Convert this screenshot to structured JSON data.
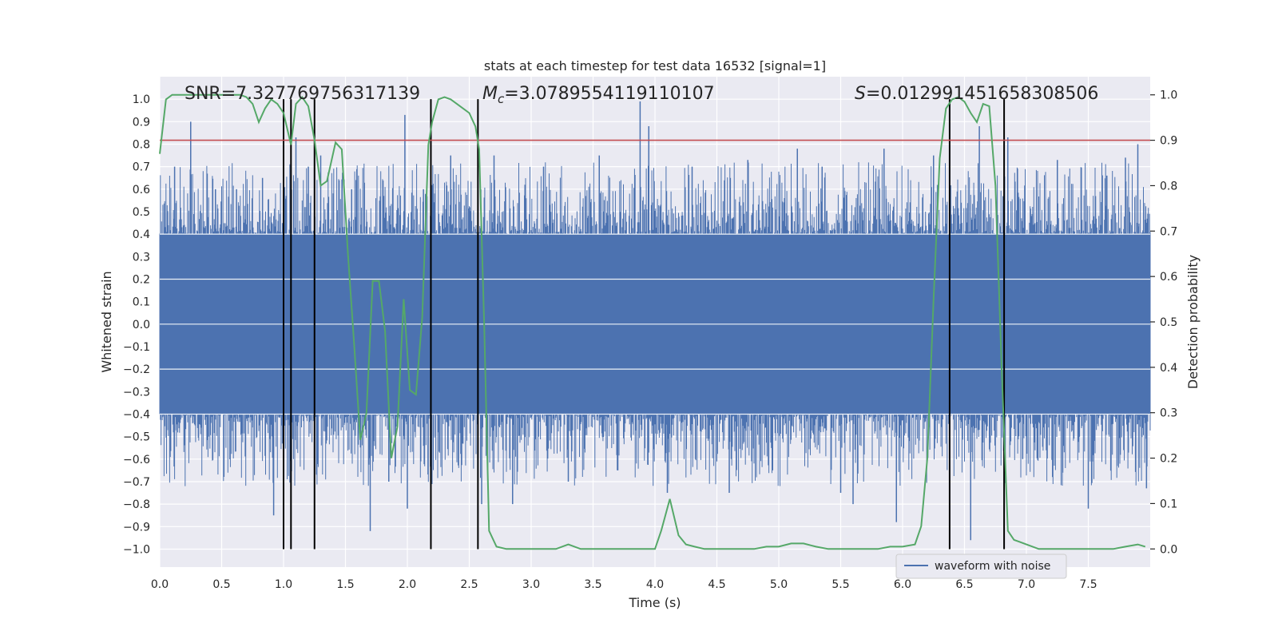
{
  "chart_data": {
    "type": "line",
    "title": "stats at each timestep for test data 16532 [signal=1]",
    "xlabel": "Time (s)",
    "ylabel": "Whitened strain",
    "ylabel_right": "Detection probability",
    "xlim": [
      0.0,
      8.0
    ],
    "ylim": [
      -1.08,
      1.1
    ],
    "ylim_right": [
      -0.04,
      1.04
    ],
    "x_ticks": [
      "0.0",
      "0.5",
      "1.0",
      "1.5",
      "2.0",
      "2.5",
      "3.0",
      "3.5",
      "4.0",
      "4.5",
      "5.0",
      "5.5",
      "6.0",
      "6.5",
      "7.0",
      "7.5"
    ],
    "x_tick_values": [
      0.0,
      0.5,
      1.0,
      1.5,
      2.0,
      2.5,
      3.0,
      3.5,
      4.0,
      4.5,
      5.0,
      5.5,
      6.0,
      6.5,
      7.0,
      7.5
    ],
    "y_ticks": [
      "−1.0",
      "−0.9",
      "−0.8",
      "−0.7",
      "−0.6",
      "−0.5",
      "−0.4",
      "−0.3",
      "−0.2",
      "−0.1",
      "0.0",
      "0.1",
      "0.2",
      "0.3",
      "0.4",
      "0.5",
      "0.6",
      "0.7",
      "0.8",
      "0.9",
      "1.0"
    ],
    "y_tick_values": [
      -1.0,
      -0.9,
      -0.8,
      -0.7,
      -0.6,
      -0.5,
      -0.4,
      -0.3,
      -0.2,
      -0.1,
      0.0,
      0.1,
      0.2,
      0.3,
      0.4,
      0.5,
      0.6,
      0.7,
      0.8,
      0.9,
      1.0
    ],
    "y_right_ticks": [
      "0.0",
      "0.1",
      "0.2",
      "0.3",
      "0.4",
      "0.5",
      "0.6",
      "0.7",
      "0.8",
      "0.9",
      "1.0"
    ],
    "y_right_tick_values": [
      0.0,
      0.1,
      0.2,
      0.3,
      0.4,
      0.5,
      0.6,
      0.7,
      0.8,
      0.9,
      1.0
    ],
    "annotations": [
      {
        "text": "SNR=7.327769756317139",
        "at_x": 0.2
      },
      {
        "text_prefix": "M",
        "text_sub": "c",
        "text_rest": "=3.0789554119110107",
        "at_x": 2.6
      },
      {
        "text_prefix": "S",
        "text_rest": "=0.012991451658308506",
        "at_x": 5.6
      }
    ],
    "threshold": {
      "axis": "right",
      "value": 0.9,
      "color": "#c44e52"
    },
    "vertical_lines_x": [
      1.0,
      1.06,
      1.25,
      2.19,
      2.57,
      6.38,
      6.82
    ],
    "vertical_line_range": [
      -1.0,
      1.0
    ],
    "waveform": {
      "name": "waveform with noise",
      "color": "#4c72b0",
      "band": 0.4,
      "spikes": [
        [
          0.25,
          0.9
        ],
        [
          0.12,
          0.7
        ],
        [
          0.45,
          0.6
        ],
        [
          0.62,
          0.6
        ],
        [
          0.83,
          0.65
        ],
        [
          0.92,
          -0.85
        ],
        [
          1.1,
          0.83
        ],
        [
          1.2,
          0.7
        ],
        [
          1.3,
          0.75
        ],
        [
          1.55,
          0.6
        ],
        [
          1.7,
          -0.92
        ],
        [
          1.85,
          -0.7
        ],
        [
          1.98,
          0.93
        ],
        [
          2.0,
          -0.82
        ],
        [
          2.13,
          0.6
        ],
        [
          2.35,
          0.75
        ],
        [
          2.6,
          -0.8
        ],
        [
          2.7,
          0.75
        ],
        [
          2.85,
          -0.8
        ],
        [
          2.95,
          0.62
        ],
        [
          3.1,
          0.7
        ],
        [
          3.3,
          -0.7
        ],
        [
          3.55,
          0.75
        ],
        [
          3.7,
          -0.65
        ],
        [
          3.88,
          0.99
        ],
        [
          3.95,
          0.88
        ],
        [
          4.1,
          -0.75
        ],
        [
          4.3,
          0.7
        ],
        [
          4.6,
          -0.75
        ],
        [
          4.75,
          0.73
        ],
        [
          4.95,
          -0.65
        ],
        [
          5.15,
          0.78
        ],
        [
          5.35,
          0.7
        ],
        [
          5.5,
          -0.75
        ],
        [
          5.6,
          -0.8
        ],
        [
          5.85,
          0.78
        ],
        [
          5.95,
          -0.88
        ],
        [
          6.25,
          0.75
        ],
        [
          6.55,
          -0.96
        ],
        [
          6.62,
          0.88
        ],
        [
          6.85,
          0.83
        ],
        [
          6.97,
          -0.6
        ],
        [
          7.25,
          0.73
        ],
        [
          7.5,
          -0.82
        ],
        [
          7.65,
          0.66
        ],
        [
          7.8,
          0.74
        ],
        [
          7.9,
          0.8
        ],
        [
          7.97,
          -0.73
        ]
      ]
    },
    "probability": {
      "name": "detection probability",
      "color": "#55a868",
      "x": [
        0.0,
        0.05,
        0.1,
        0.2,
        0.3,
        0.4,
        0.5,
        0.6,
        0.65,
        0.7,
        0.75,
        0.8,
        0.85,
        0.9,
        0.95,
        1.0,
        1.06,
        1.1,
        1.15,
        1.2,
        1.25,
        1.3,
        1.35,
        1.42,
        1.47,
        1.52,
        1.57,
        1.62,
        1.67,
        1.72,
        1.77,
        1.82,
        1.87,
        1.92,
        1.97,
        2.02,
        2.07,
        2.12,
        2.17,
        2.2,
        2.25,
        2.3,
        2.35,
        2.4,
        2.45,
        2.5,
        2.55,
        2.58,
        2.62,
        2.66,
        2.72,
        2.8,
        2.9,
        3.0,
        3.1,
        3.2,
        3.3,
        3.4,
        3.5,
        3.6,
        3.7,
        3.8,
        3.9,
        4.0,
        4.05,
        4.12,
        4.19,
        4.25,
        4.32,
        4.4,
        4.5,
        4.6,
        4.7,
        4.8,
        4.9,
        5.0,
        5.1,
        5.2,
        5.3,
        5.4,
        5.5,
        5.6,
        5.7,
        5.8,
        5.9,
        6.0,
        6.1,
        6.15,
        6.2,
        6.25,
        6.3,
        6.35,
        6.4,
        6.45,
        6.5,
        6.55,
        6.6,
        6.65,
        6.7,
        6.75,
        6.8,
        6.85,
        6.9,
        6.95,
        7.0,
        7.1,
        7.2,
        7.3,
        7.4,
        7.5,
        7.6,
        7.7,
        7.8,
        7.9,
        7.96
      ],
      "y": [
        0.87,
        0.99,
        1.0,
        1.0,
        1.0,
        1.0,
        1.0,
        1.0,
        1.0,
        0.995,
        0.98,
        0.94,
        0.97,
        0.99,
        0.98,
        0.96,
        0.89,
        0.98,
        0.995,
        0.975,
        0.9,
        0.8,
        0.81,
        0.895,
        0.88,
        0.65,
        0.45,
        0.24,
        0.3,
        0.59,
        0.59,
        0.48,
        0.2,
        0.27,
        0.55,
        0.35,
        0.34,
        0.51,
        0.89,
        0.94,
        0.99,
        0.995,
        0.99,
        0.98,
        0.97,
        0.96,
        0.93,
        0.88,
        0.5,
        0.04,
        0.005,
        0.0,
        0.0,
        0.0,
        0.0,
        0.0,
        0.01,
        0.0,
        0.0,
        0.0,
        0.0,
        0.0,
        0.0,
        0.0,
        0.04,
        0.11,
        0.03,
        0.01,
        0.005,
        0.0,
        0.0,
        0.0,
        0.0,
        0.0,
        0.005,
        0.005,
        0.012,
        0.012,
        0.005,
        0.0,
        0.0,
        0.0,
        0.0,
        0.0,
        0.005,
        0.005,
        0.01,
        0.05,
        0.2,
        0.55,
        0.86,
        0.97,
        0.99,
        0.995,
        0.985,
        0.96,
        0.94,
        0.98,
        0.975,
        0.8,
        0.4,
        0.04,
        0.02,
        0.015,
        0.01,
        0.0,
        0.0,
        0.0,
        0.0,
        0.0,
        0.0,
        0.0,
        0.005,
        0.01,
        0.005
      ]
    },
    "legend": {
      "label": "waveform with noise",
      "position": "lower-right"
    }
  }
}
